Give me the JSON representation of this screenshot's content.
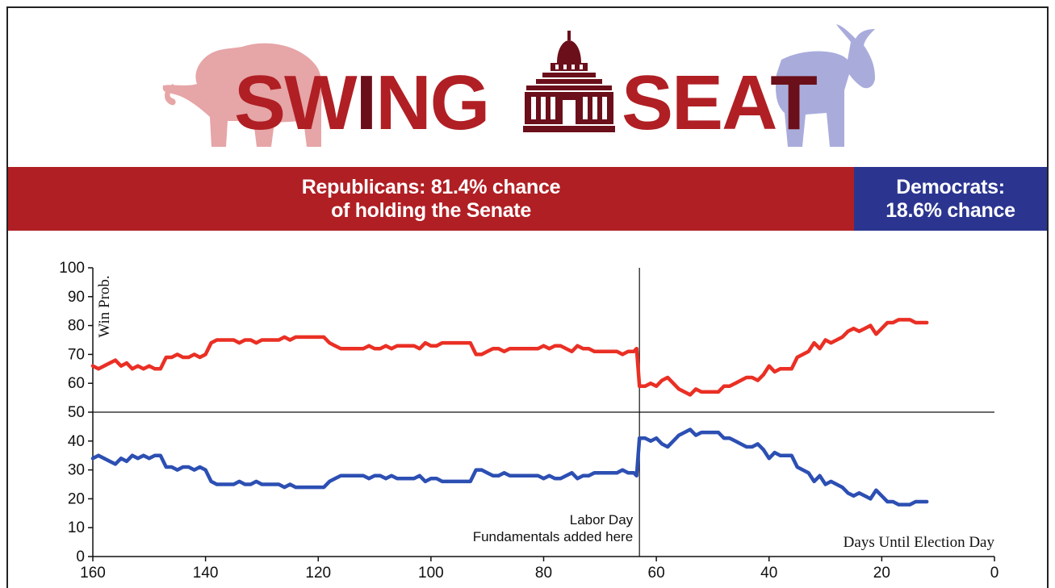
{
  "brand": {
    "word_left": "SW",
    "word_left_accent": "I",
    "word_left_rest": "NG",
    "word_right": "SEA",
    "word_right_accent": "T",
    "red": "#b01f24",
    "dark_red": "#6b0f1a",
    "blue": "#2b3590",
    "elephant_icon": "elephant-icon",
    "donkey_icon": "donkey-icon",
    "capitol_icon": "capitol-icon"
  },
  "banner": {
    "rep_line1": "Republicans: 81.4% chance",
    "rep_line2": "of holding the Senate",
    "dem_line1": "Democrats:",
    "dem_line2": "18.6% chance"
  },
  "chart_data": {
    "type": "line",
    "ylabel": "Win Prob.",
    "xlabel": "Days Until Election Day",
    "xlim": [
      160,
      0
    ],
    "ylim": [
      0,
      100
    ],
    "x_ticks": [
      160,
      140,
      120,
      100,
      80,
      60,
      40,
      20,
      0
    ],
    "y_ticks": [
      0,
      10,
      20,
      30,
      40,
      50,
      60,
      70,
      80,
      90,
      100
    ],
    "reference_line_y": 50,
    "vline": {
      "x": 63,
      "label_line1": "Labor Day",
      "label_line2": "Fundamentals added here"
    },
    "series": [
      {
        "color": "#ea2f24",
        "points": [
          [
            160,
            66
          ],
          [
            159,
            65
          ],
          [
            157,
            67
          ],
          [
            156,
            68
          ],
          [
            155,
            66
          ],
          [
            154,
            67
          ],
          [
            153,
            65
          ],
          [
            152,
            66
          ],
          [
            151,
            65
          ],
          [
            150,
            66
          ],
          [
            149,
            65
          ],
          [
            148,
            65
          ],
          [
            147,
            69
          ],
          [
            146,
            69
          ],
          [
            145,
            70
          ],
          [
            144,
            69
          ],
          [
            143,
            69
          ],
          [
            142,
            70
          ],
          [
            141,
            69
          ],
          [
            140,
            70
          ],
          [
            139,
            74
          ],
          [
            138,
            75
          ],
          [
            137,
            75
          ],
          [
            136,
            75
          ],
          [
            135,
            75
          ],
          [
            134,
            74
          ],
          [
            133,
            75
          ],
          [
            132,
            75
          ],
          [
            131,
            74
          ],
          [
            130,
            75
          ],
          [
            129,
            75
          ],
          [
            128,
            75
          ],
          [
            127,
            75
          ],
          [
            126,
            76
          ],
          [
            125,
            75
          ],
          [
            124,
            76
          ],
          [
            123,
            76
          ],
          [
            122,
            76
          ],
          [
            121,
            76
          ],
          [
            120,
            76
          ],
          [
            119,
            76
          ],
          [
            118,
            74
          ],
          [
            117,
            73
          ],
          [
            116,
            72
          ],
          [
            115,
            72
          ],
          [
            114,
            72
          ],
          [
            113,
            72
          ],
          [
            112,
            72
          ],
          [
            111,
            73
          ],
          [
            110,
            72
          ],
          [
            109,
            72
          ],
          [
            108,
            73
          ],
          [
            107,
            72
          ],
          [
            106,
            73
          ],
          [
            105,
            73
          ],
          [
            104,
            73
          ],
          [
            103,
            73
          ],
          [
            102,
            72
          ],
          [
            101,
            74
          ],
          [
            100,
            73
          ],
          [
            99,
            73
          ],
          [
            98,
            74
          ],
          [
            97,
            74
          ],
          [
            96,
            74
          ],
          [
            95,
            74
          ],
          [
            94,
            74
          ],
          [
            93,
            74
          ],
          [
            92,
            70
          ],
          [
            91,
            70
          ],
          [
            90,
            71
          ],
          [
            89,
            72
          ],
          [
            88,
            72
          ],
          [
            87,
            71
          ],
          [
            86,
            72
          ],
          [
            85,
            72
          ],
          [
            84,
            72
          ],
          [
            83,
            72
          ],
          [
            82,
            72
          ],
          [
            81,
            72
          ],
          [
            80,
            73
          ],
          [
            79,
            72
          ],
          [
            78,
            73
          ],
          [
            77,
            73
          ],
          [
            76,
            72
          ],
          [
            75,
            71
          ],
          [
            74,
            73
          ],
          [
            73,
            72
          ],
          [
            72,
            72
          ],
          [
            71,
            71
          ],
          [
            70,
            71
          ],
          [
            69,
            71
          ],
          [
            68,
            71
          ],
          [
            67,
            71
          ],
          [
            66,
            70
          ],
          [
            65,
            71
          ],
          [
            64,
            71
          ],
          [
            63.5,
            72
          ],
          [
            63,
            59
          ],
          [
            62,
            59
          ],
          [
            61,
            60
          ],
          [
            60,
            59
          ],
          [
            59,
            61
          ],
          [
            58,
            62
          ],
          [
            57,
            60
          ],
          [
            56,
            58
          ],
          [
            55,
            57
          ],
          [
            54,
            56
          ],
          [
            53,
            58
          ],
          [
            52,
            57
          ],
          [
            51,
            57
          ],
          [
            50,
            57
          ],
          [
            49,
            57
          ],
          [
            48,
            59
          ],
          [
            47,
            59
          ],
          [
            46,
            60
          ],
          [
            45,
            61
          ],
          [
            44,
            62
          ],
          [
            43,
            62
          ],
          [
            42,
            61
          ],
          [
            41,
            63
          ],
          [
            40,
            66
          ],
          [
            39,
            64
          ],
          [
            38,
            65
          ],
          [
            37,
            65
          ],
          [
            36,
            65
          ],
          [
            35,
            69
          ],
          [
            34,
            70
          ],
          [
            33,
            71
          ],
          [
            32,
            74
          ],
          [
            31,
            72
          ],
          [
            30,
            75
          ],
          [
            29,
            74
          ],
          [
            28,
            75
          ],
          [
            27,
            76
          ],
          [
            26,
            78
          ],
          [
            25,
            79
          ],
          [
            24,
            78
          ],
          [
            23,
            79
          ],
          [
            22,
            80
          ],
          [
            21,
            77
          ],
          [
            20,
            79
          ],
          [
            19,
            81
          ],
          [
            18,
            81
          ],
          [
            17,
            82
          ],
          [
            16,
            82
          ],
          [
            15,
            82
          ],
          [
            14,
            81
          ],
          [
            13,
            81
          ],
          [
            12,
            81
          ]
        ]
      },
      {
        "color": "#2c4fb3",
        "points": [
          [
            160,
            34
          ],
          [
            159,
            35
          ],
          [
            157,
            33
          ],
          [
            156,
            32
          ],
          [
            155,
            34
          ],
          [
            154,
            33
          ],
          [
            153,
            35
          ],
          [
            152,
            34
          ],
          [
            151,
            35
          ],
          [
            150,
            34
          ],
          [
            149,
            35
          ],
          [
            148,
            35
          ],
          [
            147,
            31
          ],
          [
            146,
            31
          ],
          [
            145,
            30
          ],
          [
            144,
            31
          ],
          [
            143,
            31
          ],
          [
            142,
            30
          ],
          [
            141,
            31
          ],
          [
            140,
            30
          ],
          [
            139,
            26
          ],
          [
            138,
            25
          ],
          [
            137,
            25
          ],
          [
            136,
            25
          ],
          [
            135,
            25
          ],
          [
            134,
            26
          ],
          [
            133,
            25
          ],
          [
            132,
            25
          ],
          [
            131,
            26
          ],
          [
            130,
            25
          ],
          [
            129,
            25
          ],
          [
            128,
            25
          ],
          [
            127,
            25
          ],
          [
            126,
            24
          ],
          [
            125,
            25
          ],
          [
            124,
            24
          ],
          [
            123,
            24
          ],
          [
            122,
            24
          ],
          [
            121,
            24
          ],
          [
            120,
            24
          ],
          [
            119,
            24
          ],
          [
            118,
            26
          ],
          [
            117,
            27
          ],
          [
            116,
            28
          ],
          [
            115,
            28
          ],
          [
            114,
            28
          ],
          [
            113,
            28
          ],
          [
            112,
            28
          ],
          [
            111,
            27
          ],
          [
            110,
            28
          ],
          [
            109,
            28
          ],
          [
            108,
            27
          ],
          [
            107,
            28
          ],
          [
            106,
            27
          ],
          [
            105,
            27
          ],
          [
            104,
            27
          ],
          [
            103,
            27
          ],
          [
            102,
            28
          ],
          [
            101,
            26
          ],
          [
            100,
            27
          ],
          [
            99,
            27
          ],
          [
            98,
            26
          ],
          [
            97,
            26
          ],
          [
            96,
            26
          ],
          [
            95,
            26
          ],
          [
            94,
            26
          ],
          [
            93,
            26
          ],
          [
            92,
            30
          ],
          [
            91,
            30
          ],
          [
            90,
            29
          ],
          [
            89,
            28
          ],
          [
            88,
            28
          ],
          [
            87,
            29
          ],
          [
            86,
            28
          ],
          [
            85,
            28
          ],
          [
            84,
            28
          ],
          [
            83,
            28
          ],
          [
            82,
            28
          ],
          [
            81,
            28
          ],
          [
            80,
            27
          ],
          [
            79,
            28
          ],
          [
            78,
            27
          ],
          [
            77,
            27
          ],
          [
            76,
            28
          ],
          [
            75,
            29
          ],
          [
            74,
            27
          ],
          [
            73,
            28
          ],
          [
            72,
            28
          ],
          [
            71,
            29
          ],
          [
            70,
            29
          ],
          [
            69,
            29
          ],
          [
            68,
            29
          ],
          [
            67,
            29
          ],
          [
            66,
            30
          ],
          [
            65,
            29
          ],
          [
            64,
            29
          ],
          [
            63.5,
            28
          ],
          [
            63,
            41
          ],
          [
            62,
            41
          ],
          [
            61,
            40
          ],
          [
            60,
            41
          ],
          [
            59,
            39
          ],
          [
            58,
            38
          ],
          [
            57,
            40
          ],
          [
            56,
            42
          ],
          [
            55,
            43
          ],
          [
            54,
            44
          ],
          [
            53,
            42
          ],
          [
            52,
            43
          ],
          [
            51,
            43
          ],
          [
            50,
            43
          ],
          [
            49,
            43
          ],
          [
            48,
            41
          ],
          [
            47,
            41
          ],
          [
            46,
            40
          ],
          [
            45,
            39
          ],
          [
            44,
            38
          ],
          [
            43,
            38
          ],
          [
            42,
            39
          ],
          [
            41,
            37
          ],
          [
            40,
            34
          ],
          [
            39,
            36
          ],
          [
            38,
            35
          ],
          [
            37,
            35
          ],
          [
            36,
            35
          ],
          [
            35,
            31
          ],
          [
            34,
            30
          ],
          [
            33,
            29
          ],
          [
            32,
            26
          ],
          [
            31,
            28
          ],
          [
            30,
            25
          ],
          [
            29,
            26
          ],
          [
            28,
            25
          ],
          [
            27,
            24
          ],
          [
            26,
            22
          ],
          [
            25,
            21
          ],
          [
            24,
            22
          ],
          [
            23,
            21
          ],
          [
            22,
            20
          ],
          [
            21,
            23
          ],
          [
            20,
            21
          ],
          [
            19,
            19
          ],
          [
            18,
            19
          ],
          [
            17,
            18
          ],
          [
            16,
            18
          ],
          [
            15,
            18
          ],
          [
            14,
            19
          ],
          [
            13,
            19
          ],
          [
            12,
            19
          ]
        ]
      }
    ]
  }
}
